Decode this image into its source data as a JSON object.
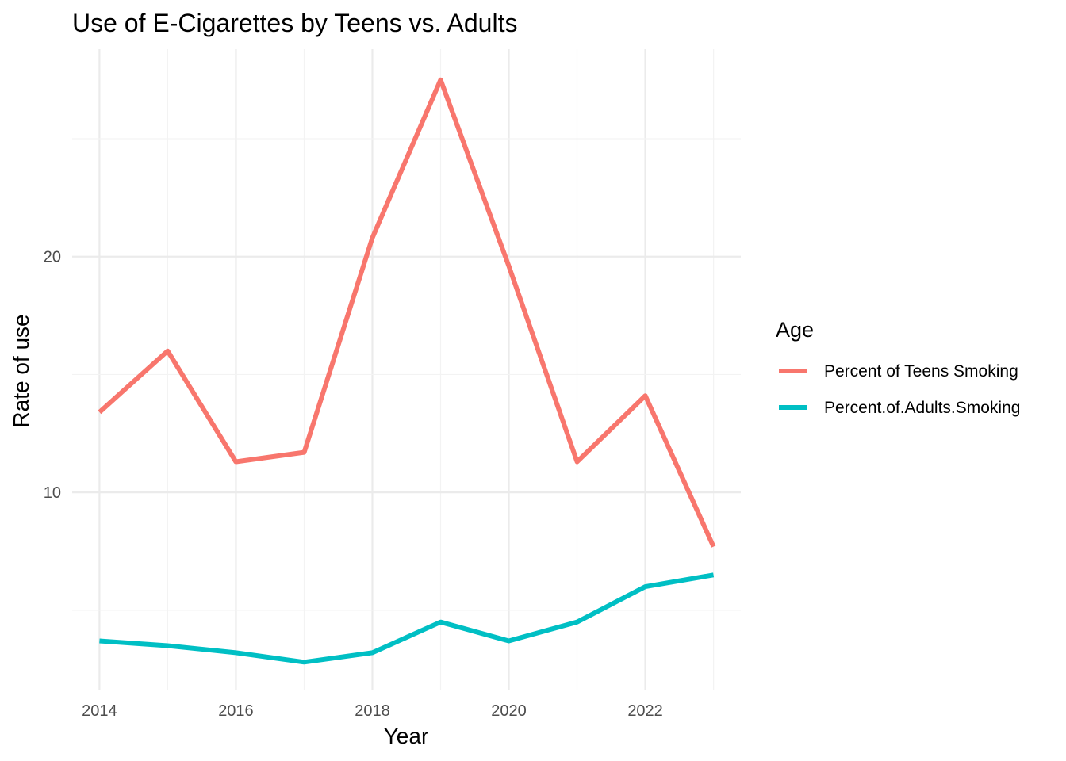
{
  "chart_data": {
    "type": "line",
    "title": "Use of E-Cigarettes by Teens vs. Adults",
    "xlabel": "Year",
    "ylabel": "Rate of use",
    "x": [
      2014,
      2015,
      2016,
      2017,
      2018,
      2019,
      2020,
      2021,
      2022,
      2023
    ],
    "x_ticks": [
      "2014",
      "2016",
      "2018",
      "2020",
      "2022"
    ],
    "y_ticks": [
      "10",
      "20"
    ],
    "xlim": [
      2013.6,
      2023.4
    ],
    "ylim": [
      1.6,
      28.8
    ],
    "grid": true,
    "legend": {
      "title": "Age",
      "position": "right"
    },
    "series": [
      {
        "name": "Percent of Teens Smoking",
        "color": "#F8766D",
        "values": [
          13.4,
          16.0,
          11.3,
          11.7,
          20.8,
          27.5,
          19.6,
          11.3,
          14.1,
          7.7
        ]
      },
      {
        "name": "Percent.of.Adults.Smoking",
        "color": "#00BFC4",
        "values": [
          3.7,
          3.5,
          3.2,
          2.8,
          3.2,
          4.5,
          3.7,
          4.5,
          6.0,
          6.5
        ]
      }
    ]
  }
}
